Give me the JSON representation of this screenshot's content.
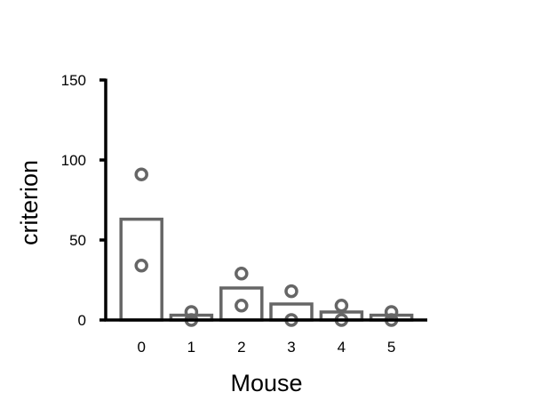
{
  "chart_data": {
    "type": "bar",
    "title": "",
    "xlabel": "Mouse",
    "ylabel": "criterion",
    "categories": [
      "0",
      "1",
      "2",
      "3",
      "4",
      "5"
    ],
    "values": [
      63,
      3,
      20,
      10,
      5,
      3
    ],
    "points": [
      [
        91,
        34
      ],
      [
        5,
        0
      ],
      [
        29,
        9
      ],
      [
        18,
        0
      ],
      [
        9,
        0
      ],
      [
        5,
        0
      ]
    ],
    "ylim": [
      0,
      150
    ],
    "yticks": [
      0,
      50,
      100,
      150
    ],
    "grid": false,
    "legend": "none",
    "colors": {
      "bar_stroke": "#666666",
      "bar_fill": "#ffffff",
      "point_stroke": "#666666",
      "axis": "#000000"
    }
  }
}
